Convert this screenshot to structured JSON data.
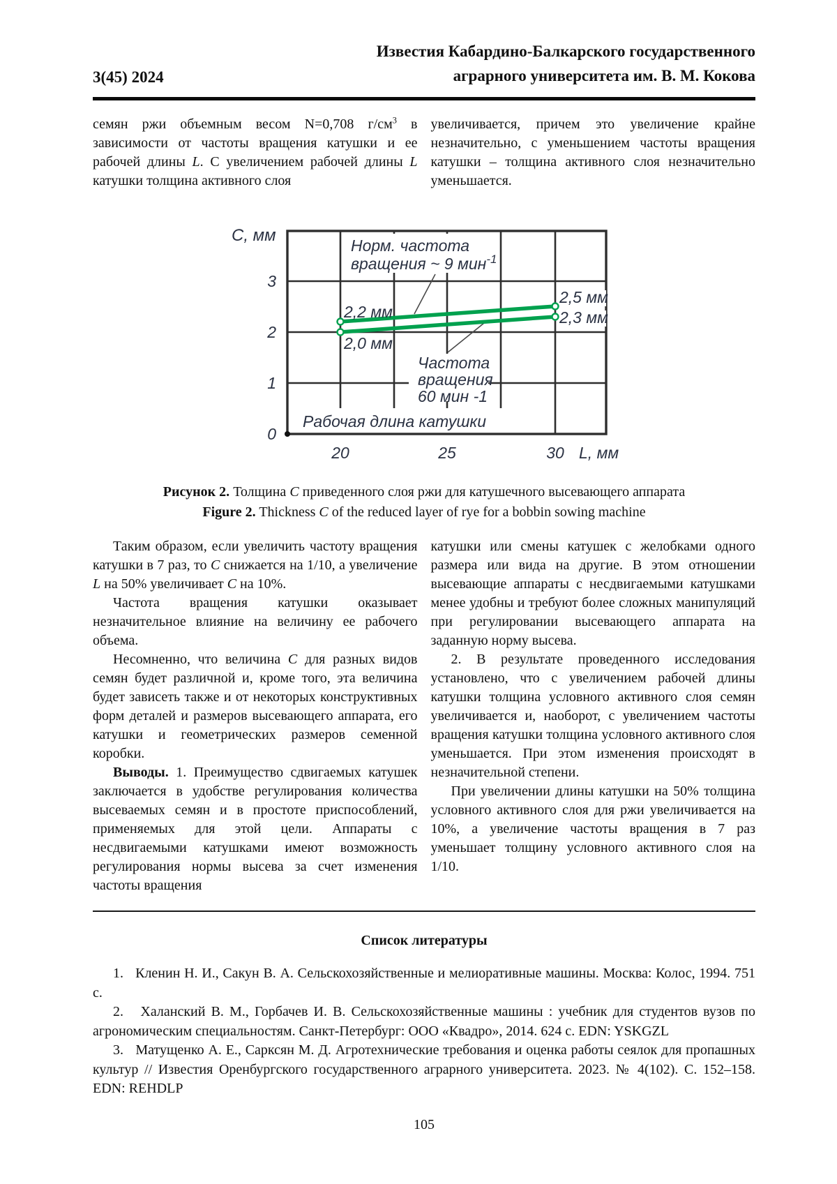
{
  "header": {
    "issue": "3(45) 2024",
    "journal_line1": "Известия Кабардино-Балкарского государственного",
    "journal_line2": "аграрного университета им. В. М. Кокова"
  },
  "intro": {
    "left": [
      {
        "t": "семян ржи объемным весом N=0,708 г/см",
        "s": ""
      },
      {
        "t": "3",
        "s": "sup"
      },
      {
        "t": " в зависимости от частоты вращения катушки и ее рабочей длины ",
        "s": ""
      },
      {
        "t": "L",
        "s": "i"
      },
      {
        "t": ". С увеличением рабочей длины ",
        "s": ""
      },
      {
        "t": "L",
        "s": "i"
      },
      {
        "t": " катушки толщина активного слоя",
        "s": ""
      }
    ],
    "right": [
      {
        "t": "увеличивается, причем это увеличение крайне незначительно, с уменьшением частоты вращения катушки – толщина активного слоя незначительно уменьшается.",
        "s": ""
      }
    ]
  },
  "figure": {
    "caption_ru": [
      {
        "t": "Рисунок 2.",
        "s": "b"
      },
      {
        "t": " Толщина ",
        "s": ""
      },
      {
        "t": "C",
        "s": "i"
      },
      {
        "t": " приведенного слоя ржи для катушечного высевающего аппарата",
        "s": ""
      }
    ],
    "caption_en": [
      {
        "t": "Figure 2.",
        "s": "b"
      },
      {
        "t": " Thickness ",
        "s": ""
      },
      {
        "t": "C",
        "s": "i"
      },
      {
        "t": " of the reduced layer of rye for a bobbin sowing machine",
        "s": ""
      }
    ],
    "chart_data": {
      "type": "line",
      "x": [
        20,
        30
      ],
      "xlabel": "L, мм",
      "ylabel": "C, мм",
      "x_ticks": [
        "20",
        "25",
        "30"
      ],
      "y_ticks": [
        "0",
        "1",
        "2",
        "3"
      ],
      "xlim": [
        17.5,
        32.5
      ],
      "ylim": [
        0,
        4
      ],
      "grid": true,
      "line_color": "#00a14e",
      "series": [
        {
          "name": "Норм. частота вращения ~ 9 мин⁻¹",
          "values": [
            2.2,
            2.5
          ],
          "point_labels": [
            "2,2 мм",
            "2,5 мм"
          ]
        },
        {
          "name": "Частота вращения 60 мин -1",
          "values": [
            2.0,
            2.3
          ],
          "point_labels": [
            "2,0 мм",
            "2,3 мм"
          ]
        }
      ],
      "annotations": {
        "series1_lines": [
          "Норм. частота",
          "вращения ~ 9 мин"
        ],
        "series1_sup": "-1",
        "series2_lines": [
          "Частота",
          "вращения",
          "60 мин -1"
        ],
        "x_axis_inner_label": "Рабочая длина катушки"
      }
    }
  },
  "body": {
    "left": [
      [
        {
          "t": "Таким образом, если увеличить частоту вращения катушки в 7 раз, то ",
          "s": ""
        },
        {
          "t": "C",
          "s": "i"
        },
        {
          "t": " снижается на 1/10, а увеличение ",
          "s": ""
        },
        {
          "t": "L",
          "s": "i"
        },
        {
          "t": " на 50% увеличивает ",
          "s": ""
        },
        {
          "t": "C",
          "s": "i"
        },
        {
          "t": " на 10%.",
          "s": ""
        }
      ],
      [
        {
          "t": "Частота вращения катушки оказывает незначительное влияние на величину ее рабочего объема.",
          "s": ""
        }
      ],
      [
        {
          "t": "Несомненно, что величина ",
          "s": ""
        },
        {
          "t": "C",
          "s": "i"
        },
        {
          "t": " для разных видов семян будет различной и, кроме того, эта величина будет зависеть также и от некоторых конструктивных форм деталей и размеров высевающего аппарата, его катушки и геометрических размеров семенной коробки.",
          "s": ""
        }
      ],
      [
        {
          "t": "Выводы.",
          "s": "b"
        },
        {
          "t": " 1. Преимущество сдвигаемых катушек заключается в удобстве регулирования количества высеваемых семян и в простоте приспособлений, применяемых для этой цели. Аппараты с несдвигаемыми катушками имеют возможность регулирования нормы высева за счет изменения частоты вращения",
          "s": ""
        }
      ]
    ],
    "right": [
      [
        {
          "t": "катушки или смены катушек с желобками одного размера или вида на другие. В этом отношении высевающие аппараты с несдвигаемыми катушками менее удобны и требуют более сложных манипуляций при регулировании высевающего аппарата на заданную норму высева.",
          "s": ""
        }
      ],
      [
        {
          "t": "2. В результате проведенного исследования установлено, что с увеличением рабочей длины катушки толщина условного активного слоя семян увеличивается и, наоборот, с увеличением частоты вращения катушки толщина условного активного слоя уменьшается. При этом изменения происходят в незначительной степени.",
          "s": ""
        }
      ],
      [
        {
          "t": "При увеличении длины катушки на 50% толщина условного активного слоя для ржи увеличивается на 10%, а увеличение частоты вращения в 7 раз уменьшает толщину условного активного слоя на 1/10.",
          "s": ""
        }
      ]
    ]
  },
  "references": {
    "heading": "Список литературы",
    "items": [
      "1.   Кленин Н. И., Сакун В. А. Сельскохозяйственные и мелиоративные машины. Москва: Колос, 1994. 751 с.",
      "2.   Халанский В. М., Горбачев И. В. Сельскохозяйственные машины : учебник для студентов вузов по агрономическим специальностям. Санкт-Петербург: ООО «Квадро», 2014. 624 с. EDN: YSKGZL",
      "3.   Матущенко А. Е., Сарксян М. Д. Агротехнические требования и оценка работы сеялок для пропашных культур // Известия Оренбургского государственного аграрного университета. 2023. № 4(102). С. 152–158. EDN: REHDLP"
    ]
  },
  "page_number": "105"
}
